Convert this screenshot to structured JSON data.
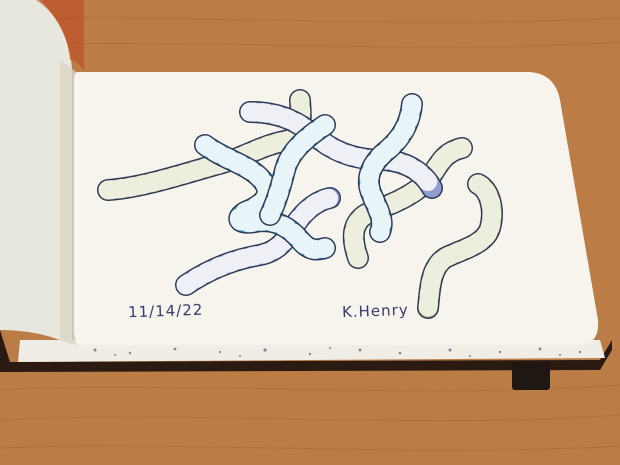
{
  "photo": {
    "subject": "sketchbook-drawing",
    "caption_date": "11/14/22",
    "caption_artist": "K.Henry"
  },
  "colors": {
    "table": "#b97a42",
    "paper": "#f6f3ec",
    "page_left": "#ecebe2",
    "cover": "#2a1a12",
    "worm_blue": "#2f8fb8",
    "worm_periwinkle": "#8e9ed0",
    "worm_olive": "#b8b37a",
    "ink_outline": "#2c3a57"
  }
}
